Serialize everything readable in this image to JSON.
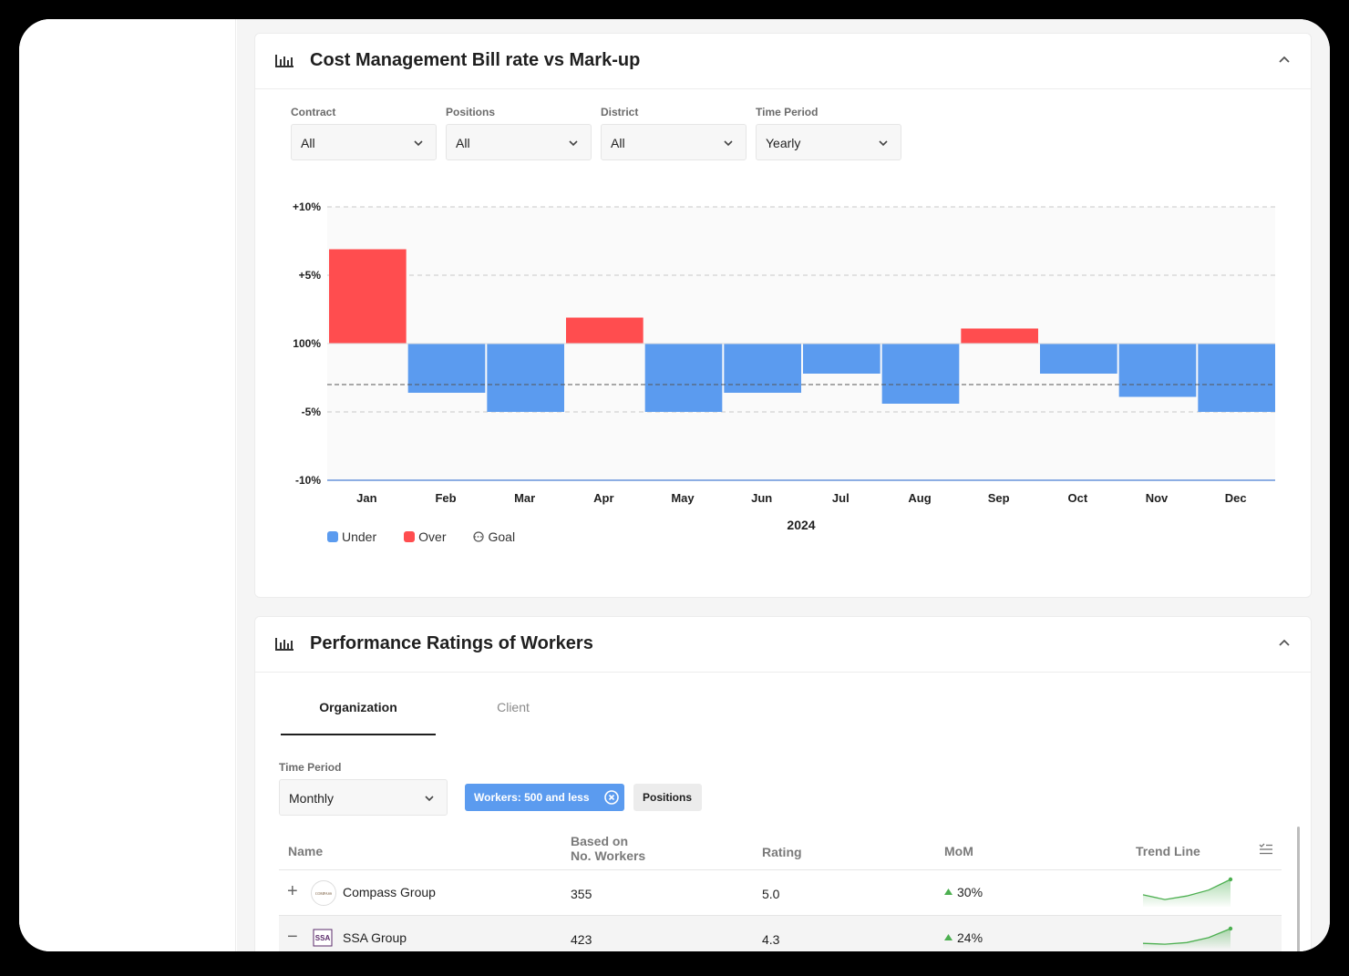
{
  "cost_card": {
    "title": "Cost Management Bill rate vs Mark-up",
    "icon": "bar-chart-icon",
    "filters": [
      {
        "label": "Contract",
        "value": "All"
      },
      {
        "label": "Positions",
        "value": "All"
      },
      {
        "label": "District",
        "value": "All"
      },
      {
        "label": "Time Period",
        "value": "Yearly"
      }
    ],
    "legend": [
      {
        "label": "Under",
        "color": "#5b9bef"
      },
      {
        "label": "Over",
        "color": "#ff4d4f"
      },
      {
        "label": "Goal",
        "icon": "goal-icon"
      }
    ]
  },
  "chart_data": {
    "type": "bar",
    "categories": [
      "Jan",
      "Feb",
      "Mar",
      "Apr",
      "May",
      "Jun",
      "Jul",
      "Aug",
      "Sep",
      "Oct",
      "Nov",
      "Dec"
    ],
    "values": [
      6.9,
      -3.6,
      -5.0,
      1.9,
      -5.0,
      -3.6,
      -2.2,
      -4.4,
      1.1,
      -2.2,
      -3.9,
      -5.0
    ],
    "goal": -3.0,
    "ylim": [
      -10,
      10
    ],
    "yticks": [
      {
        "v": 10,
        "label": "+10%"
      },
      {
        "v": 5,
        "label": "+5%"
      },
      {
        "v": 0,
        "label": "100%"
      },
      {
        "v": -5,
        "label": "-5%"
      },
      {
        "v": -10,
        "label": "-10%"
      }
    ],
    "xlabel": "2024",
    "colors": {
      "under": "#5b9bef",
      "over": "#ff4d4f"
    }
  },
  "perf_card": {
    "title": "Performance Ratings of Workers",
    "icon": "bar-chart-icon",
    "tabs": [
      "Organization",
      "Client"
    ],
    "time_period_label": "Time Period",
    "time_period_value": "Monthly",
    "chip_workers": "Workers: 500 and less",
    "chip_positions": "Positions",
    "columns": {
      "name": "Name",
      "based_on_1": "Based on",
      "based_on_2": "No. Workers",
      "rating": "Rating",
      "mom": "MoM",
      "trend": "Trend Line"
    },
    "rows": [
      {
        "name": "Compass Group",
        "workers": "355",
        "rating": "5.0",
        "mom": "30%",
        "expand": "+",
        "trend": [
          0.35,
          0.15,
          0.3,
          0.55,
          1.0
        ]
      },
      {
        "name": "SSA Group",
        "workers": "423",
        "rating": "4.3",
        "mom": "24%",
        "expand": "−",
        "trend": [
          0.1,
          0.05,
          0.15,
          0.45,
          1.0
        ]
      }
    ]
  }
}
